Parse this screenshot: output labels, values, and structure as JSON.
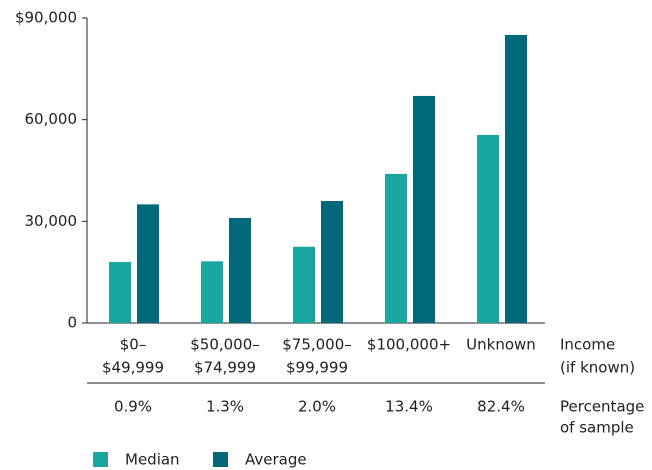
{
  "chart_data": {
    "type": "bar",
    "categories": [
      [
        "$0–",
        "$49,999"
      ],
      [
        "$50,000–",
        "$74,999"
      ],
      [
        "$75,000–",
        "$99,999"
      ],
      [
        "$100,000+"
      ],
      [
        "Unknown"
      ]
    ],
    "x_label": [
      "Income",
      "(if known)"
    ],
    "series": [
      {
        "name": "Median",
        "color": "#1aa79f",
        "values": [
          18000,
          18200,
          22500,
          44000,
          55500
        ]
      },
      {
        "name": "Average",
        "color": "#006878",
        "values": [
          35000,
          31000,
          36000,
          67000,
          85000
        ]
      }
    ],
    "ylim": [
      0,
      90000
    ],
    "yticks": [
      0,
      {
        "value": 30000,
        "label": "30,000"
      },
      {
        "value": 60000,
        "label": "60,000"
      },
      {
        "value": 90000,
        "label": "$90,000"
      }
    ],
    "sample_share": {
      "label": [
        "Percentage",
        "of sample"
      ],
      "values": [
        0.9,
        1.3,
        2.0,
        13.4,
        82.4
      ],
      "value_labels": [
        "0.9%",
        "1.3%",
        "2.0%",
        "13.4%",
        "82.4%"
      ]
    },
    "legend": "bottom-left"
  }
}
